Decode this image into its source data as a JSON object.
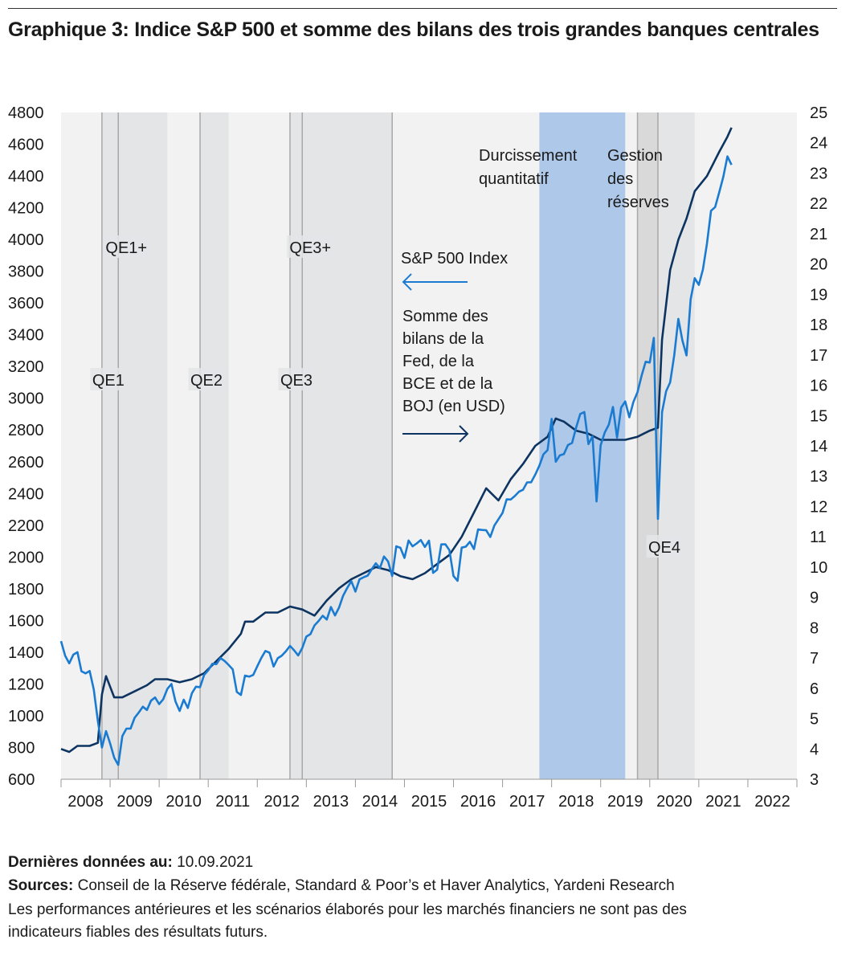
{
  "title": "Graphique 3: Indice S&P 500 et somme des bilans des trois grandes banques centrales",
  "footer": {
    "last_data_label": "Dernières données au:",
    "last_data_value": " 10.09.2021",
    "sources_label": "Sources:",
    "sources_value": " Conseil de la Réserve fédérale, Standard & Poor’s et Haver Analytics, Yardeni Research",
    "disclaimer_line1": "Les performances antérieures et les scénarios élaborés pour les marchés financiers ne sont pas des",
    "disclaimer_line2": "indicateurs fiables des résultats futurs."
  },
  "chart_data": {
    "type": "line",
    "title": "Graphique 3: Indice S&P 500 et somme des bilans des trois grandes banques centrales",
    "x_ticks": [
      "2008",
      "2009",
      "2010",
      "2011",
      "2012",
      "2013",
      "2014",
      "2015",
      "2016",
      "2017",
      "2018",
      "2019",
      "2020",
      "2021",
      "2022"
    ],
    "xlim": [
      "2008-01",
      "2022-12"
    ],
    "left_axis": {
      "ylim": [
        600,
        4800
      ],
      "ticks": [
        "4800",
        "4600",
        "4400",
        "4200",
        "4000",
        "3800",
        "3600",
        "3400",
        "3200",
        "3000",
        "2800",
        "2600",
        "2400",
        "2200",
        "2000",
        "1800",
        "1600",
        "1400",
        "1200",
        "1000",
        "800",
        "600"
      ]
    },
    "right_axis": {
      "ylim": [
        3,
        25
      ],
      "ticks": [
        "25",
        "24",
        "23",
        "22",
        "21",
        "20",
        "19",
        "18",
        "17",
        "16",
        "15",
        "14",
        "13",
        "12",
        "11",
        "10",
        "9",
        "8",
        "7",
        "6",
        "5",
        "4",
        "3"
      ]
    },
    "grid": false,
    "colors": {
      "sp500": "#1a7bd1",
      "balance": "#0d3461",
      "background": "#f2f2f2",
      "qe_band": "#e4e5e7",
      "qt_band": "#aec8e9",
      "reserve_band": "#d9d9d9",
      "vline": "#a8a8a8"
    },
    "periods": [
      {
        "label": "QE1",
        "start": "2008-11",
        "end": "2010-03",
        "label_row": "low"
      },
      {
        "label": "QE1+",
        "start": "2009-03",
        "end": "2010-03",
        "label_row": "high"
      },
      {
        "label": "QE2",
        "start": "2010-11",
        "end": "2011-06",
        "label_row": "low"
      },
      {
        "label": "QE3",
        "start": "2012-09",
        "end": "2014-10",
        "label_row": "low"
      },
      {
        "label": "QE3+",
        "start": "2012-12",
        "end": "2014-10",
        "label_row": "high"
      },
      {
        "label": "Durcissement quantitatif",
        "start": "2017-10",
        "end": "2019-07",
        "kind": "qt"
      },
      {
        "label": "Gestion des réserves",
        "start": "2019-10",
        "end": "2020-03",
        "kind": "reserve"
      },
      {
        "label": "QE4",
        "start": "2020-03",
        "end": "2020-12",
        "label_row": "bottom"
      }
    ],
    "annotations": {
      "qt_line1": "Durcissement",
      "qt_line2": "quantitatif",
      "res_line1": "Gestion",
      "res_line2": "des",
      "res_line3": "réserves",
      "sp_label": "S&P 500 Index",
      "bs_line1": "Somme des",
      "bs_line2": "bilans de la",
      "bs_line3": "Fed, de la",
      "bs_line4": "BCE et de la",
      "bs_line5": "BOJ (en USD)"
    },
    "series": [
      {
        "name": "S&P 500 Index",
        "axis": "left",
        "points": [
          [
            "2008-01",
            1470
          ],
          [
            "2008-02",
            1378
          ],
          [
            "2008-03",
            1330
          ],
          [
            "2008-04",
            1385
          ],
          [
            "2008-05",
            1400
          ],
          [
            "2008-06",
            1280
          ],
          [
            "2008-07",
            1267
          ],
          [
            "2008-08",
            1282
          ],
          [
            "2008-09",
            1166
          ],
          [
            "2008-10",
            968
          ],
          [
            "2008-11",
            800
          ],
          [
            "2008-12",
            903
          ],
          [
            "2009-01",
            825
          ],
          [
            "2009-02",
            735
          ],
          [
            "2009-03",
            690
          ],
          [
            "2009-04",
            872
          ],
          [
            "2009-05",
            919
          ],
          [
            "2009-06",
            919
          ],
          [
            "2009-07",
            987
          ],
          [
            "2009-08",
            1020
          ],
          [
            "2009-09",
            1057
          ],
          [
            "2009-10",
            1036
          ],
          [
            "2009-11",
            1095
          ],
          [
            "2009-12",
            1115
          ],
          [
            "2010-01",
            1073
          ],
          [
            "2010-02",
            1104
          ],
          [
            "2010-03",
            1169
          ],
          [
            "2010-04",
            1200
          ],
          [
            "2010-05",
            1089
          ],
          [
            "2010-06",
            1030
          ],
          [
            "2010-07",
            1101
          ],
          [
            "2010-08",
            1049
          ],
          [
            "2010-09",
            1141
          ],
          [
            "2010-10",
            1183
          ],
          [
            "2010-11",
            1180
          ],
          [
            "2010-12",
            1257
          ],
          [
            "2011-01",
            1286
          ],
          [
            "2011-02",
            1327
          ],
          [
            "2011-03",
            1325
          ],
          [
            "2011-04",
            1363
          ],
          [
            "2011-05",
            1345
          ],
          [
            "2011-06",
            1320
          ],
          [
            "2011-07",
            1292
          ],
          [
            "2011-08",
            1150
          ],
          [
            "2011-09",
            1131
          ],
          [
            "2011-10",
            1253
          ],
          [
            "2011-11",
            1246
          ],
          [
            "2011-12",
            1257
          ],
          [
            "2012-01",
            1312
          ],
          [
            "2012-02",
            1365
          ],
          [
            "2012-03",
            1408
          ],
          [
            "2012-04",
            1397
          ],
          [
            "2012-05",
            1310
          ],
          [
            "2012-06",
            1362
          ],
          [
            "2012-07",
            1379
          ],
          [
            "2012-08",
            1406
          ],
          [
            "2012-09",
            1440
          ],
          [
            "2012-10",
            1412
          ],
          [
            "2012-11",
            1380
          ],
          [
            "2012-12",
            1426
          ],
          [
            "2013-01",
            1498
          ],
          [
            "2013-02",
            1514
          ],
          [
            "2013-03",
            1569
          ],
          [
            "2013-04",
            1597
          ],
          [
            "2013-05",
            1630
          ],
          [
            "2013-06",
            1606
          ],
          [
            "2013-07",
            1685
          ],
          [
            "2013-08",
            1632
          ],
          [
            "2013-09",
            1681
          ],
          [
            "2013-10",
            1756
          ],
          [
            "2013-11",
            1805
          ],
          [
            "2013-12",
            1848
          ],
          [
            "2014-01",
            1782
          ],
          [
            "2014-02",
            1859
          ],
          [
            "2014-03",
            1872
          ],
          [
            "2014-04",
            1883
          ],
          [
            "2014-05",
            1923
          ],
          [
            "2014-06",
            1960
          ],
          [
            "2014-07",
            1930
          ],
          [
            "2014-08",
            2003
          ],
          [
            "2014-09",
            1972
          ],
          [
            "2014-10",
            1880
          ],
          [
            "2014-11",
            2067
          ],
          [
            "2014-12",
            2058
          ],
          [
            "2015-01",
            1994
          ],
          [
            "2015-02",
            2104
          ],
          [
            "2015-03",
            2067
          ],
          [
            "2015-04",
            2085
          ],
          [
            "2015-05",
            2107
          ],
          [
            "2015-06",
            2063
          ],
          [
            "2015-07",
            2103
          ],
          [
            "2015-08",
            1900
          ],
          [
            "2015-09",
            1920
          ],
          [
            "2015-10",
            2079
          ],
          [
            "2015-11",
            2080
          ],
          [
            "2015-12",
            2043
          ],
          [
            "2016-01",
            1880
          ],
          [
            "2016-02",
            1850
          ],
          [
            "2016-03",
            2059
          ],
          [
            "2016-04",
            2065
          ],
          [
            "2016-05",
            2096
          ],
          [
            "2016-06",
            2050
          ],
          [
            "2016-07",
            2173
          ],
          [
            "2016-08",
            2170
          ],
          [
            "2016-09",
            2168
          ],
          [
            "2016-10",
            2126
          ],
          [
            "2016-11",
            2198
          ],
          [
            "2016-12",
            2238
          ],
          [
            "2017-01",
            2278
          ],
          [
            "2017-02",
            2363
          ],
          [
            "2017-03",
            2362
          ],
          [
            "2017-04",
            2384
          ],
          [
            "2017-05",
            2411
          ],
          [
            "2017-06",
            2423
          ],
          [
            "2017-07",
            2470
          ],
          [
            "2017-08",
            2471
          ],
          [
            "2017-09",
            2519
          ],
          [
            "2017-10",
            2575
          ],
          [
            "2017-11",
            2647
          ],
          [
            "2017-12",
            2673
          ],
          [
            "2018-01",
            2870
          ],
          [
            "2018-02",
            2600
          ],
          [
            "2018-03",
            2640
          ],
          [
            "2018-04",
            2648
          ],
          [
            "2018-05",
            2705
          ],
          [
            "2018-06",
            2718
          ],
          [
            "2018-07",
            2816
          ],
          [
            "2018-08",
            2901
          ],
          [
            "2018-09",
            2913
          ],
          [
            "2018-10",
            2711
          ],
          [
            "2018-11",
            2760
          ],
          [
            "2018-12",
            2350
          ],
          [
            "2019-01",
            2704
          ],
          [
            "2019-02",
            2784
          ],
          [
            "2019-03",
            2834
          ],
          [
            "2019-04",
            2945
          ],
          [
            "2019-05",
            2752
          ],
          [
            "2019-06",
            2941
          ],
          [
            "2019-07",
            2980
          ],
          [
            "2019-08",
            2880
          ],
          [
            "2019-09",
            2976
          ],
          [
            "2019-10",
            3037
          ],
          [
            "2019-11",
            3141
          ],
          [
            "2019-12",
            3230
          ],
          [
            "2020-01",
            3225
          ],
          [
            "2020-02",
            3380
          ],
          [
            "2020-03",
            2240
          ],
          [
            "2020-04",
            2912
          ],
          [
            "2020-05",
            3044
          ],
          [
            "2020-06",
            3100
          ],
          [
            "2020-07",
            3271
          ],
          [
            "2020-08",
            3500
          ],
          [
            "2020-09",
            3363
          ],
          [
            "2020-10",
            3270
          ],
          [
            "2020-11",
            3622
          ],
          [
            "2020-12",
            3756
          ],
          [
            "2021-01",
            3714
          ],
          [
            "2021-02",
            3811
          ],
          [
            "2021-03",
            3973
          ],
          [
            "2021-04",
            4181
          ],
          [
            "2021-05",
            4204
          ],
          [
            "2021-06",
            4297
          ],
          [
            "2021-07",
            4395
          ],
          [
            "2021-08",
            4523
          ],
          [
            "2021-09",
            4470
          ]
        ]
      },
      {
        "name": "Somme des bilans de la Fed, de la BCE et de la BOJ (en USD)",
        "axis": "right",
        "points": [
          [
            "2008-01",
            4.0
          ],
          [
            "2008-03",
            3.9
          ],
          [
            "2008-05",
            4.1
          ],
          [
            "2008-08",
            4.1
          ],
          [
            "2008-10",
            4.2
          ],
          [
            "2008-11",
            5.8
          ],
          [
            "2008-12",
            6.4
          ],
          [
            "2009-02",
            5.7
          ],
          [
            "2009-04",
            5.7
          ],
          [
            "2009-07",
            5.9
          ],
          [
            "2009-10",
            6.1
          ],
          [
            "2009-12",
            6.3
          ],
          [
            "2010-03",
            6.3
          ],
          [
            "2010-06",
            6.2
          ],
          [
            "2010-09",
            6.3
          ],
          [
            "2010-12",
            6.5
          ],
          [
            "2011-03",
            6.9
          ],
          [
            "2011-06",
            7.3
          ],
          [
            "2011-09",
            7.8
          ],
          [
            "2011-10",
            8.2
          ],
          [
            "2011-12",
            8.2
          ],
          [
            "2012-03",
            8.5
          ],
          [
            "2012-06",
            8.5
          ],
          [
            "2012-09",
            8.7
          ],
          [
            "2012-12",
            8.6
          ],
          [
            "2013-03",
            8.4
          ],
          [
            "2013-06",
            8.9
          ],
          [
            "2013-09",
            9.3
          ],
          [
            "2013-12",
            9.6
          ],
          [
            "2014-03",
            9.8
          ],
          [
            "2014-06",
            10.0
          ],
          [
            "2014-09",
            9.9
          ],
          [
            "2014-12",
            9.7
          ],
          [
            "2015-03",
            9.6
          ],
          [
            "2015-06",
            9.8
          ],
          [
            "2015-09",
            10.1
          ],
          [
            "2015-12",
            10.4
          ],
          [
            "2016-03",
            11.0
          ],
          [
            "2016-06",
            11.8
          ],
          [
            "2016-09",
            12.6
          ],
          [
            "2016-12",
            12.2
          ],
          [
            "2017-03",
            12.9
          ],
          [
            "2017-06",
            13.4
          ],
          [
            "2017-09",
            14.0
          ],
          [
            "2017-12",
            14.3
          ],
          [
            "2018-02",
            14.9
          ],
          [
            "2018-04",
            14.8
          ],
          [
            "2018-07",
            14.5
          ],
          [
            "2018-10",
            14.4
          ],
          [
            "2019-01",
            14.2
          ],
          [
            "2019-04",
            14.2
          ],
          [
            "2019-07",
            14.2
          ],
          [
            "2019-10",
            14.3
          ],
          [
            "2020-01",
            14.5
          ],
          [
            "2020-03",
            14.6
          ],
          [
            "2020-04",
            17.5
          ],
          [
            "2020-06",
            19.8
          ],
          [
            "2020-08",
            20.8
          ],
          [
            "2020-10",
            21.5
          ],
          [
            "2020-12",
            22.4
          ],
          [
            "2021-03",
            22.9
          ],
          [
            "2021-06",
            23.7
          ],
          [
            "2021-08",
            24.2
          ],
          [
            "2021-09",
            24.5
          ]
        ]
      }
    ]
  }
}
